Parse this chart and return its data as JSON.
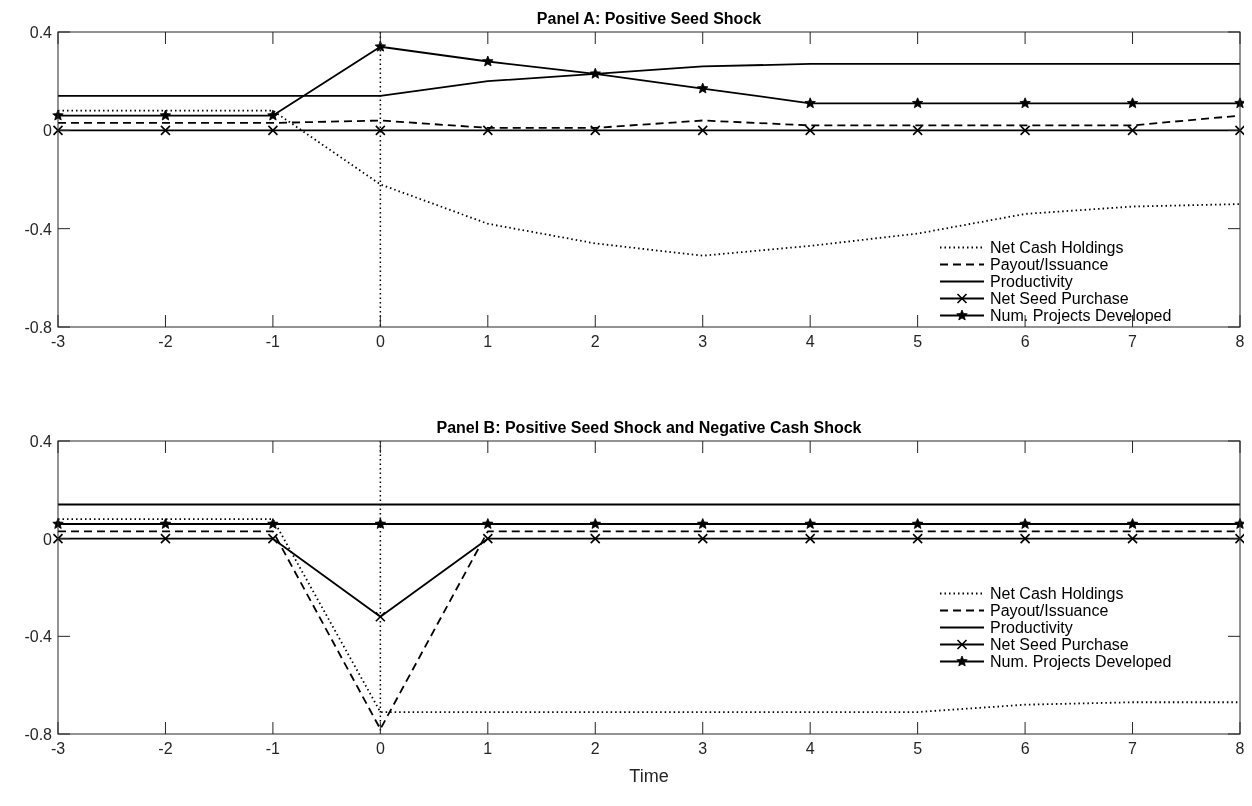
{
  "chart_data": [
    {
      "type": "line",
      "title": "Panel A: Positive Seed Shock",
      "x": [
        -3,
        -2,
        -1,
        0,
        1,
        2,
        3,
        4,
        5,
        6,
        7,
        8
      ],
      "xlim": [
        -3,
        8
      ],
      "xticks": [
        -3,
        -2,
        -1,
        0,
        1,
        2,
        3,
        4,
        5,
        6,
        7,
        8
      ],
      "ylim": [
        -0.8,
        0.4
      ],
      "yticks": [
        -0.8,
        -0.4,
        0,
        0.4
      ],
      "legend": "bottom right",
      "ref_lines": [
        {
          "axis": "x",
          "value": 0,
          "line_style": "dotted"
        }
      ],
      "series": [
        {
          "name": "Net Cash Holdings",
          "color": "#000000",
          "line_style": "dotted",
          "marker": "none",
          "values": [
            0.08,
            0.08,
            0.08,
            -0.22,
            -0.38,
            -0.46,
            -0.51,
            -0.47,
            -0.42,
            -0.34,
            -0.31,
            -0.3
          ]
        },
        {
          "name": "Payout/Issuance",
          "color": "#000000",
          "line_style": "dashed",
          "marker": "none",
          "values": [
            0.03,
            0.03,
            0.03,
            0.04,
            0.01,
            0.01,
            0.04,
            0.02,
            0.02,
            0.02,
            0.02,
            0.06
          ]
        },
        {
          "name": "Productivity",
          "color": "#000000",
          "line_style": "solid",
          "marker": "none",
          "values": [
            0.14,
            0.14,
            0.14,
            0.14,
            0.2,
            0.23,
            0.26,
            0.27,
            0.27,
            0.27,
            0.27,
            0.27
          ]
        },
        {
          "name": "Net Seed Purchase",
          "color": "#000000",
          "line_style": "solid",
          "marker": "cross",
          "values": [
            0,
            0,
            0,
            0,
            0,
            0,
            0,
            0,
            0,
            0,
            0,
            0
          ]
        },
        {
          "name": "Num. Projects Developed",
          "color": "#000000",
          "line_style": "solid",
          "marker": "star",
          "values": [
            0.06,
            0.06,
            0.06,
            0.34,
            0.28,
            0.23,
            0.17,
            0.11,
            0.11,
            0.11,
            0.11,
            0.11
          ]
        }
      ]
    },
    {
      "type": "line",
      "title": "Panel B: Positive Seed Shock and Negative Cash Shock",
      "xlabel": "Time",
      "x": [
        -3,
        -2,
        -1,
        0,
        1,
        2,
        3,
        4,
        5,
        6,
        7,
        8
      ],
      "xlim": [
        -3,
        8
      ],
      "xticks": [
        -3,
        -2,
        -1,
        0,
        1,
        2,
        3,
        4,
        5,
        6,
        7,
        8
      ],
      "ylim": [
        -0.8,
        0.4
      ],
      "yticks": [
        -0.8,
        -0.4,
        0,
        0.4
      ],
      "legend": "right",
      "ref_lines": [
        {
          "axis": "x",
          "value": 0,
          "line_style": "dotted"
        }
      ],
      "series": [
        {
          "name": "Net Cash Holdings",
          "color": "#000000",
          "line_style": "dotted",
          "marker": "none",
          "values": [
            0.08,
            0.08,
            0.08,
            -0.71,
            -0.71,
            -0.71,
            -0.71,
            -0.71,
            -0.71,
            -0.68,
            -0.67,
            -0.67
          ]
        },
        {
          "name": "Payout/Issuance",
          "color": "#000000",
          "line_style": "dashed",
          "marker": "none",
          "values": [
            0.03,
            0.03,
            0.03,
            -0.78,
            0.03,
            0.03,
            0.03,
            0.03,
            0.03,
            0.03,
            0.03,
            0.03
          ]
        },
        {
          "name": "Productivity",
          "color": "#000000",
          "line_style": "solid",
          "marker": "none",
          "values": [
            0.14,
            0.14,
            0.14,
            0.14,
            0.14,
            0.14,
            0.14,
            0.14,
            0.14,
            0.14,
            0.14,
            0.14
          ]
        },
        {
          "name": "Net Seed Purchase",
          "color": "#000000",
          "line_style": "solid",
          "marker": "cross",
          "values": [
            0,
            0,
            0,
            -0.32,
            0,
            0,
            0,
            0,
            0,
            0,
            0,
            0
          ]
        },
        {
          "name": "Num. Projects Developed",
          "color": "#000000",
          "line_style": "solid",
          "marker": "star",
          "values": [
            0.06,
            0.06,
            0.06,
            0.06,
            0.06,
            0.06,
            0.06,
            0.06,
            0.06,
            0.06,
            0.06,
            0.06
          ]
        }
      ]
    }
  ]
}
